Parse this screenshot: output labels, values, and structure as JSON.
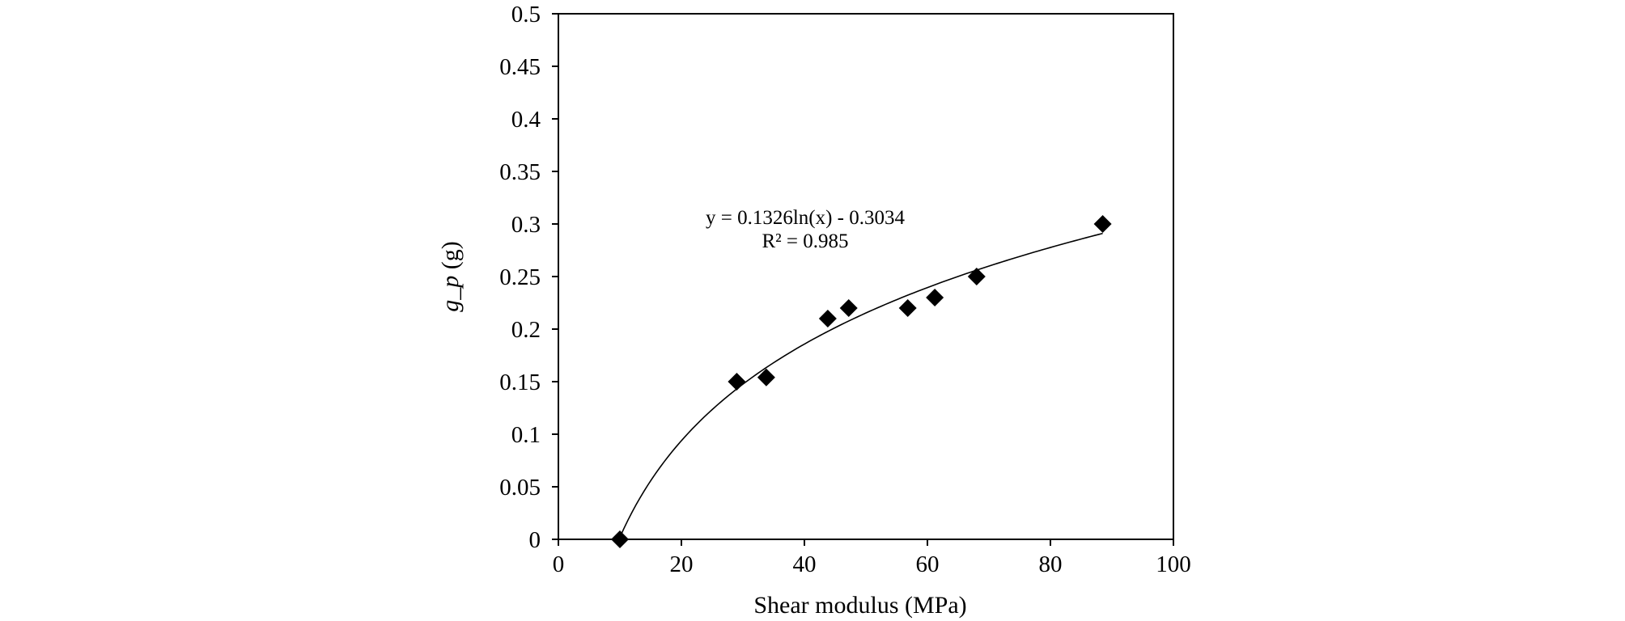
{
  "chart_data": {
    "type": "scatter",
    "title": "",
    "xlabel": "Shear modulus (MPa)",
    "ylabel": {
      "italic": "g_p",
      "unit": " (g)"
    },
    "xlim": [
      0,
      100
    ],
    "ylim": [
      0,
      0.5
    ],
    "x_ticks": [
      0,
      20,
      40,
      60,
      80,
      100
    ],
    "x_tick_labels": [
      "0",
      "20",
      "40",
      "60",
      "80",
      "100"
    ],
    "y_ticks": [
      0,
      0.05,
      0.1,
      0.15,
      0.2,
      0.25,
      0.3,
      0.35,
      0.4,
      0.45,
      0.5
    ],
    "y_tick_labels": [
      "0",
      "0.05",
      "0.1",
      "0.15",
      "0.2",
      "0.25",
      "0.3",
      "0.35",
      "0.4",
      "0.45",
      "0.5"
    ],
    "grid": false,
    "legend": "none",
    "series": [
      {
        "marker": "diamond",
        "color": "#000000",
        "points": [
          {
            "x": 10,
            "y": 0
          },
          {
            "x": 29,
            "y": 0.15
          },
          {
            "x": 33.8,
            "y": 0.154
          },
          {
            "x": 43.8,
            "y": 0.21
          },
          {
            "x": 47.2,
            "y": 0.22
          },
          {
            "x": 56.8,
            "y": 0.22
          },
          {
            "x": 61.2,
            "y": 0.23
          },
          {
            "x": 68,
            "y": 0.25
          },
          {
            "x": 88.5,
            "y": 0.3
          }
        ]
      }
    ],
    "trendline": {
      "type": "logarithmic",
      "a": 0.1326,
      "b": -0.3034,
      "x_range": [
        10,
        88.5
      ],
      "color": "#000000",
      "equation_text": "y = 0.1326ln(x) - 0.3034",
      "r2_text": "R² = 0.985"
    }
  }
}
